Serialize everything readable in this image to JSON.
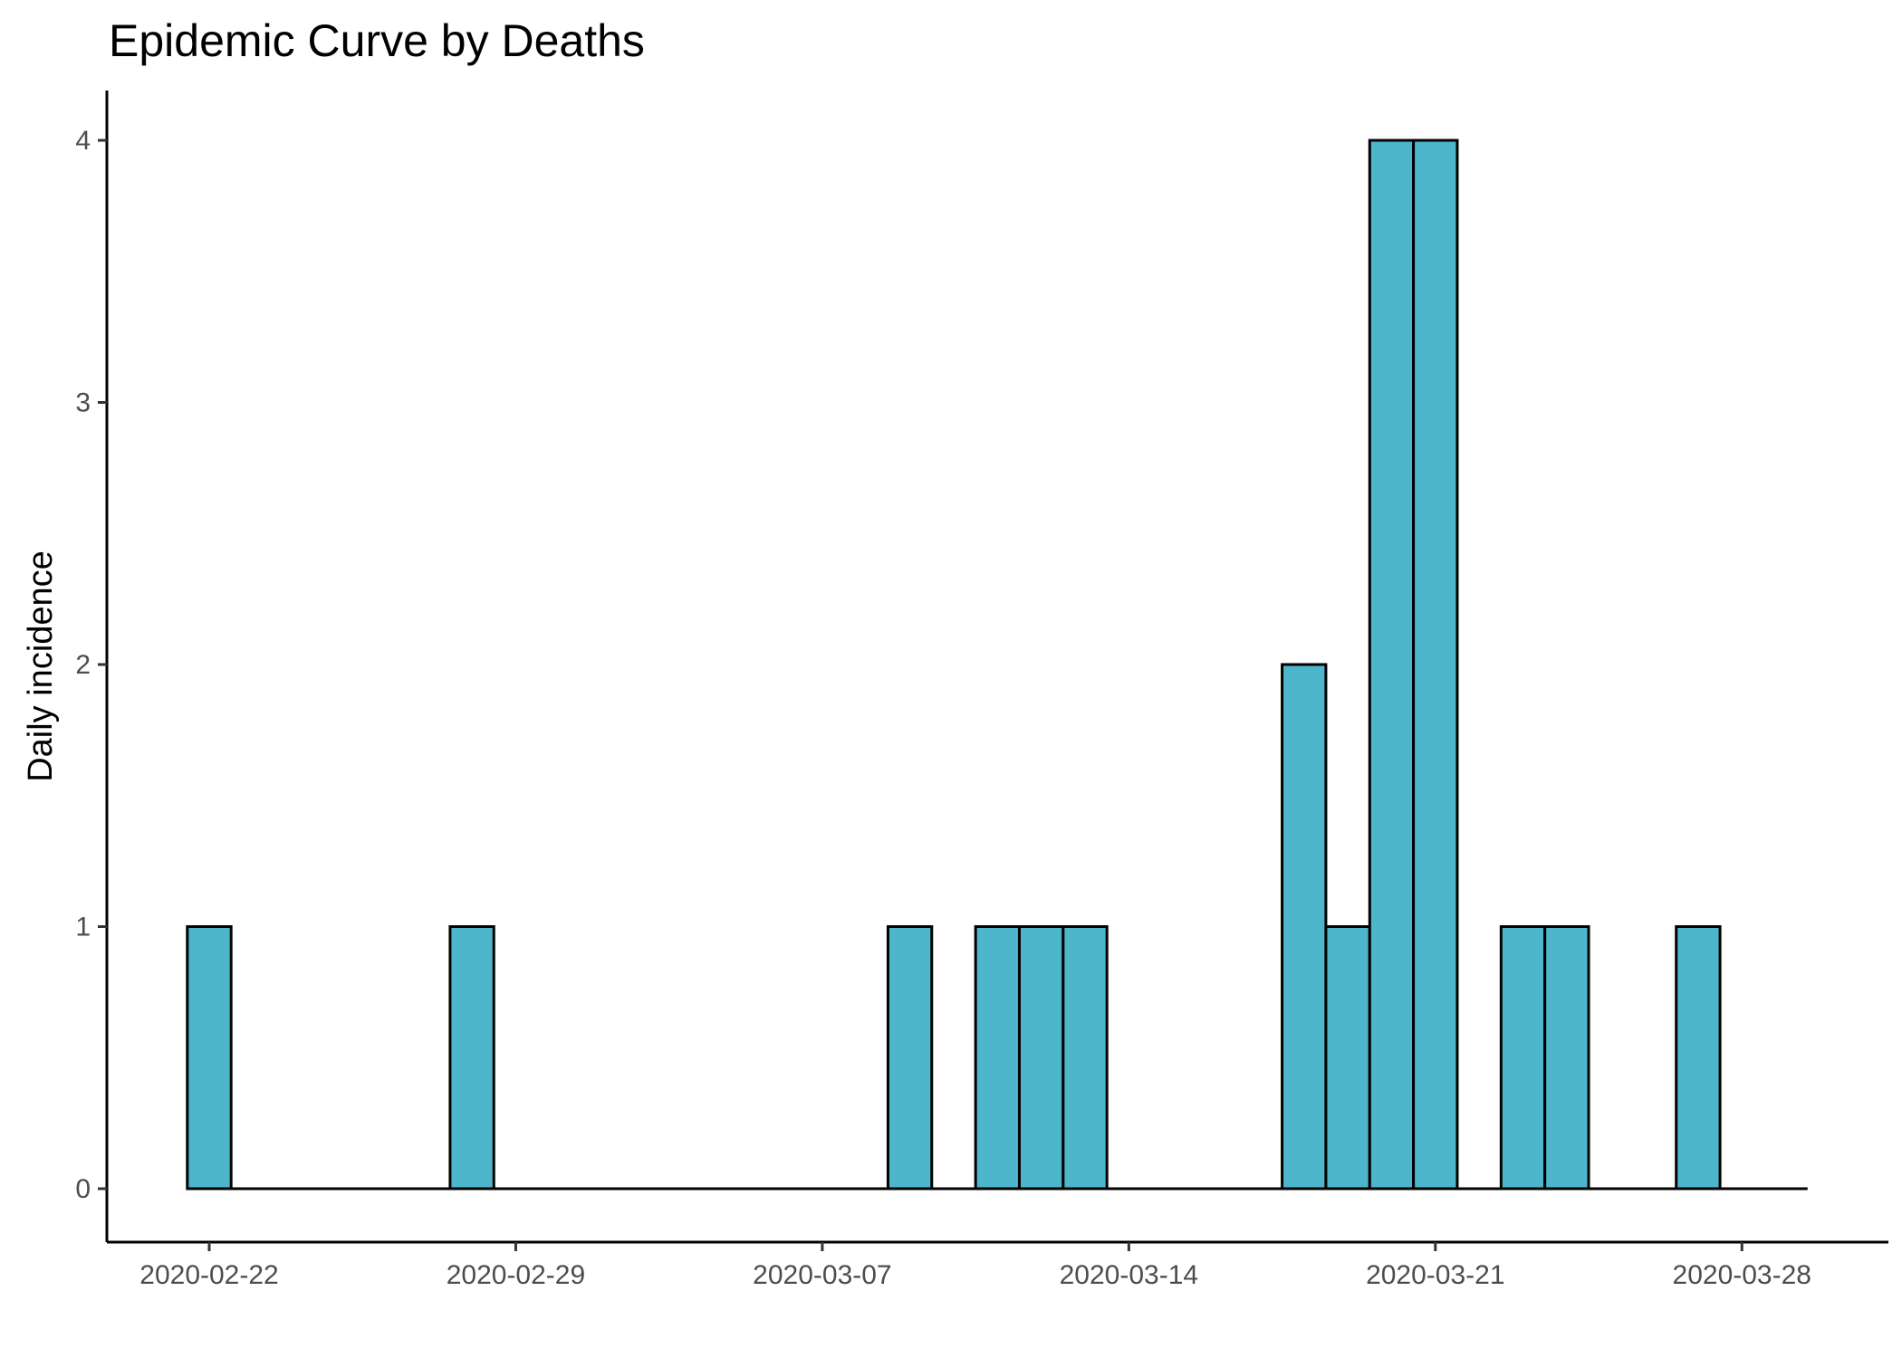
{
  "chart_data": {
    "type": "bar",
    "title": "Epidemic Curve by Deaths",
    "xlabel": "",
    "ylabel": "Daily incidence",
    "x_tick_labels": [
      "2020-02-22",
      "2020-02-29",
      "2020-03-07",
      "2020-03-14",
      "2020-03-21",
      "2020-03-28"
    ],
    "y_tick_labels": [
      "0",
      "1",
      "2",
      "3",
      "4"
    ],
    "ylim": [
      0,
      4
    ],
    "xlim": [
      "2020-02-22",
      "2020-03-29"
    ],
    "grid": false,
    "legend": "none",
    "bar_color": "#4db6cb",
    "bar_outline_color": "#000000",
    "categories": [
      "2020-02-22",
      "2020-02-23",
      "2020-02-24",
      "2020-02-25",
      "2020-02-26",
      "2020-02-27",
      "2020-02-28",
      "2020-02-29",
      "2020-03-01",
      "2020-03-02",
      "2020-03-03",
      "2020-03-04",
      "2020-03-05",
      "2020-03-06",
      "2020-03-07",
      "2020-03-08",
      "2020-03-09",
      "2020-03-10",
      "2020-03-11",
      "2020-03-12",
      "2020-03-13",
      "2020-03-14",
      "2020-03-15",
      "2020-03-16",
      "2020-03-17",
      "2020-03-18",
      "2020-03-19",
      "2020-03-20",
      "2020-03-21",
      "2020-03-22",
      "2020-03-23",
      "2020-03-24",
      "2020-03-25",
      "2020-03-26",
      "2020-03-27",
      "2020-03-28",
      "2020-03-29"
    ],
    "values": [
      1,
      0,
      0,
      0,
      0,
      0,
      1,
      0,
      0,
      0,
      0,
      0,
      0,
      0,
      0,
      0,
      1,
      0,
      1,
      1,
      1,
      0,
      0,
      0,
      0,
      2,
      1,
      4,
      4,
      0,
      1,
      1,
      0,
      0,
      1,
      0,
      0
    ]
  }
}
